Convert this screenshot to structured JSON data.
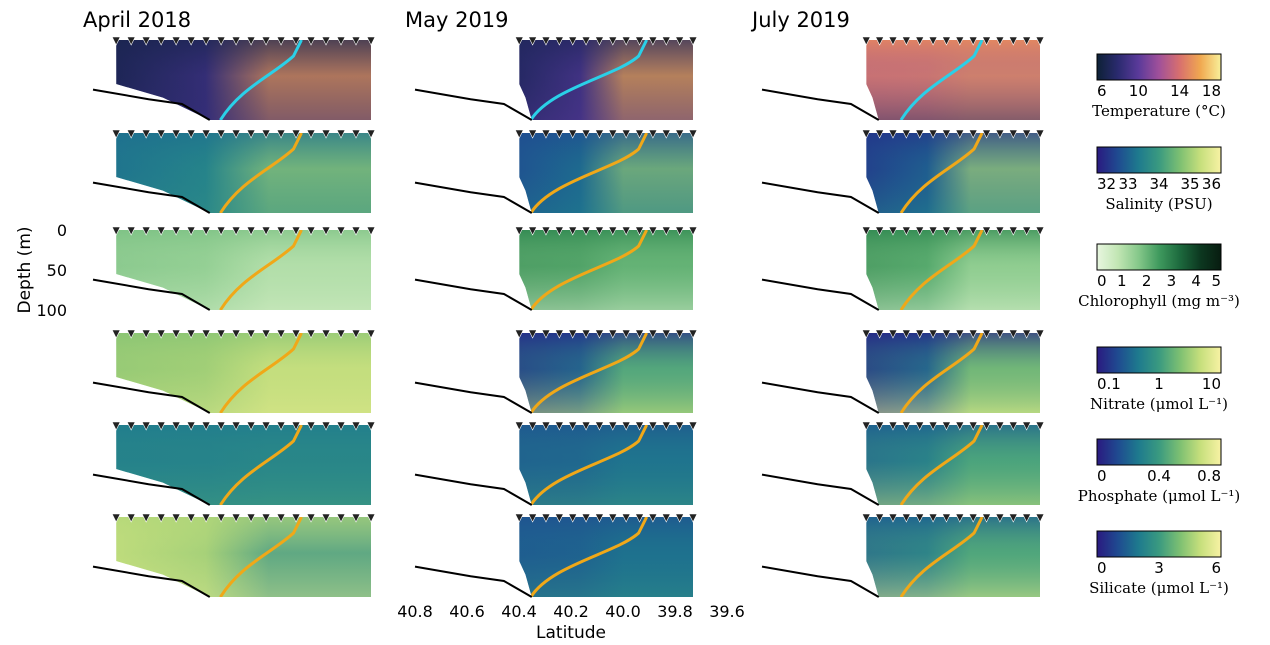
{
  "chart_data": {
    "type": "heatmap",
    "columns": [
      {
        "title": "April 2018",
        "section_lat_range": [
          40.7,
          39.6
        ],
        "front_lat_at_bottom": 40.25,
        "front_lat_at_top": 39.9
      },
      {
        "title": "May 2019",
        "section_lat_range": [
          40.35,
          39.6
        ],
        "front_lat_at_bottom": 40.3,
        "front_lat_at_top": 39.8
      },
      {
        "title": "July 2019",
        "section_lat_range": [
          40.35,
          39.6
        ],
        "front_lat_at_bottom": 40.2,
        "front_lat_at_top": 39.85
      }
    ],
    "ylabel": "Depth (m)",
    "y_ticks": [
      "0",
      "50",
      "100"
    ],
    "ylim": [
      0,
      100
    ],
    "xlabel": "Latitude",
    "x_ticks": [
      "40.8",
      "40.6",
      "40.4",
      "40.2",
      "40.0",
      "39.8",
      "39.6"
    ],
    "xlim": [
      40.8,
      39.6
    ],
    "rows": [
      {
        "variable": "Temperature",
        "cb_label": "Temperature (°C)",
        "ticks": [
          "6",
          "10",
          "14",
          "18"
        ],
        "range": [
          5,
          20
        ],
        "colors": [
          "#0d2136",
          "#2a2a6e",
          "#5a3a9a",
          "#a0509a",
          "#d8706e",
          "#f0a850",
          "#f8f09a"
        ],
        "front_color": "#2ad0e8",
        "panels": [
          {
            "shallow": 0.08,
            "deep": 0.18,
            "offshore": 0.78
          },
          {
            "shallow": 0.12,
            "deep": 0.25,
            "offshore": 0.82
          },
          {
            "shallow": 0.72,
            "deep": 0.2,
            "offshore": 0.78
          }
        ]
      },
      {
        "variable": "Salinity",
        "cb_label": "Salinity (PSU)",
        "ticks": [
          "32",
          "33",
          "34",
          "35",
          "36"
        ],
        "range": [
          32,
          36
        ],
        "colors": [
          "#2a1a80",
          "#1f4a90",
          "#1e7a8e",
          "#3a9a80",
          "#7cbf72",
          "#c6df7c",
          "#f8f2a4"
        ],
        "front_color": "#f0a818",
        "panels": [
          {
            "shallow": 0.3,
            "deep": 0.42,
            "offshore": 0.72
          },
          {
            "shallow": 0.18,
            "deep": 0.32,
            "offshore": 0.7
          },
          {
            "shallow": 0.1,
            "deep": 0.35,
            "offshore": 0.75
          }
        ]
      },
      {
        "variable": "Chlorophyll",
        "cb_label": "Chlorophyll (mg m⁻³)",
        "ticks": [
          "0",
          "1",
          "2",
          "3",
          "4",
          "5"
        ],
        "range": [
          0,
          5
        ],
        "colors": [
          "#e8f6e0",
          "#c2e6b4",
          "#86c88a",
          "#3f9a5e",
          "#1d6a3e",
          "#0c3820",
          "#081c10"
        ],
        "front_color": "#f0a818",
        "panels": [
          {
            "shallow": 0.35,
            "deep": 0.12,
            "offshore": 0.2
          },
          {
            "shallow": 0.55,
            "deep": 0.1,
            "offshore": 0.45
          },
          {
            "shallow": 0.55,
            "deep": 0.1,
            "offshore": 0.3
          }
        ]
      },
      {
        "variable": "Nitrate",
        "cb_label": "Nitrate (μmol L⁻¹)",
        "ticks": [
          "0.1",
          "1",
          "10"
        ],
        "range": [
          0.1,
          10
        ],
        "scale": "log",
        "colors": [
          "#2a1a80",
          "#1f4a90",
          "#1e7a8e",
          "#3a9a80",
          "#7cbf72",
          "#c6df7c",
          "#f8f2a4"
        ],
        "front_color": "#f0a818",
        "panels": [
          {
            "shallow": 0.7,
            "deep": 0.88,
            "offshore": 0.85
          },
          {
            "shallow": 0.08,
            "deep": 0.82,
            "offshore": 0.6
          },
          {
            "shallow": 0.06,
            "deep": 0.9,
            "offshore": 0.7
          }
        ]
      },
      {
        "variable": "Phosphate",
        "cb_label": "Phosphate (μmol L⁻¹)",
        "ticks": [
          "0",
          "0.4",
          "0.8"
        ],
        "range": [
          0,
          0.8
        ],
        "colors": [
          "#2a1a80",
          "#1f4a90",
          "#1e7a8e",
          "#3a9a80",
          "#7cbf72",
          "#c6df7c",
          "#f8f2a4"
        ],
        "front_color": "#f0a818",
        "panels": [
          {
            "shallow": 0.35,
            "deep": 0.52,
            "offshore": 0.38
          },
          {
            "shallow": 0.22,
            "deep": 0.48,
            "offshore": 0.3
          },
          {
            "shallow": 0.25,
            "deep": 0.8,
            "offshore": 0.55
          }
        ]
      },
      {
        "variable": "Silicate",
        "cb_label": "Silicate (μmol L⁻¹)",
        "ticks": [
          "0",
          "3",
          "6"
        ],
        "range": [
          0,
          6
        ],
        "colors": [
          "#2a1a80",
          "#1f4a90",
          "#1e7a8e",
          "#3a9a80",
          "#7cbf72",
          "#c6df7c",
          "#f8f2a4"
        ],
        "front_color": "#f0a818",
        "panels": [
          {
            "shallow": 0.8,
            "deep": 0.9,
            "offshore": 0.45
          },
          {
            "shallow": 0.2,
            "deep": 0.42,
            "offshore": 0.3
          },
          {
            "shallow": 0.25,
            "deep": 0.88,
            "offshore": 0.55
          }
        ]
      }
    ],
    "bathymetry_color": "#000000",
    "station_marker": "downward triangle",
    "grid": false,
    "legend_placement": "right (one colorbar per row)"
  }
}
